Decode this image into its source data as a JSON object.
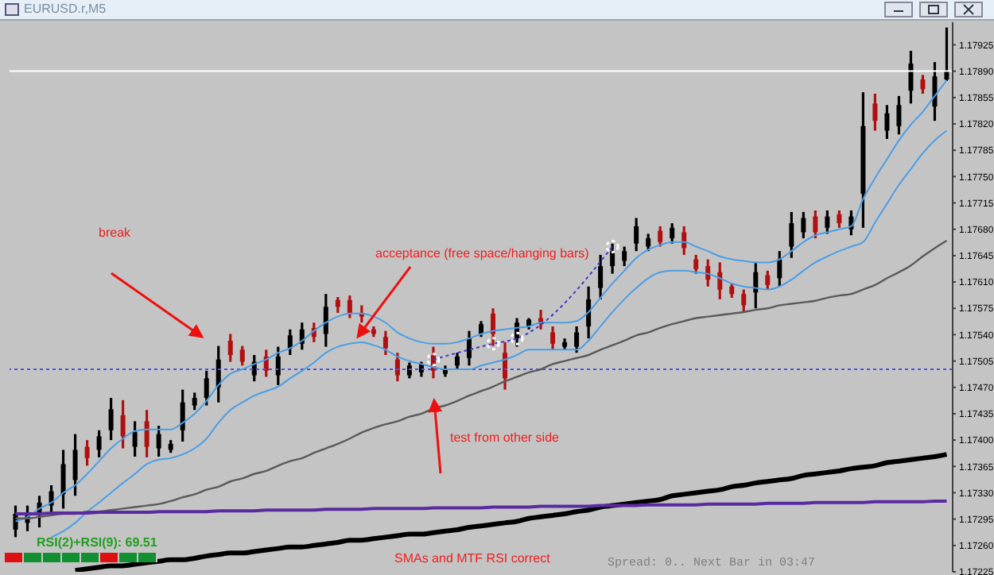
{
  "chart_data": {
    "type": "candlestick",
    "title": "EURUSD.r,M5",
    "categories": [
      null,
      null,
      null,
      null,
      null,
      null,
      null,
      null,
      null,
      null,
      null,
      null,
      null,
      null,
      null,
      null,
      null,
      null,
      null,
      null,
      null,
      null,
      null,
      null,
      null,
      null,
      null,
      null,
      null,
      null,
      null,
      null,
      null,
      null,
      null,
      null,
      null,
      null,
      null,
      null,
      null,
      null,
      null,
      null,
      null,
      null,
      null,
      null,
      null,
      null,
      null,
      null,
      null,
      null,
      null,
      null,
      null,
      null,
      null,
      null,
      null,
      null,
      null,
      null,
      null,
      null,
      null,
      null,
      null,
      null,
      null,
      null,
      null,
      null,
      null,
      null,
      null,
      null,
      null
    ],
    "ohlc": [
      [
        1.17281,
        1.17313,
        1.17271,
        1.17302
      ],
      [
        1.1729,
        1.17313,
        1.17279,
        1.17304
      ],
      [
        1.17302,
        1.17326,
        1.17284,
        1.17317
      ],
      [
        1.17313,
        1.1734,
        1.17304,
        1.17332
      ],
      [
        1.17328,
        1.17387,
        1.17309,
        1.17368
      ],
      [
        1.17347,
        1.17408,
        1.17326,
        1.17387
      ],
      [
        1.17391,
        1.174,
        1.17366,
        1.17376
      ],
      [
        1.17387,
        1.17413,
        1.17377,
        1.17405
      ],
      [
        1.17413,
        1.17456,
        1.174,
        1.17441
      ],
      [
        1.17433,
        1.17453,
        1.17389,
        1.17405
      ],
      [
        1.17391,
        1.17425,
        1.17378,
        1.17411
      ],
      [
        1.17425,
        1.1744,
        1.17377,
        1.17391
      ],
      [
        1.17389,
        1.17419,
        1.17378,
        1.17408
      ],
      [
        1.17387,
        1.174,
        1.17383,
        1.17395
      ],
      [
        1.17413,
        1.17467,
        1.17398,
        1.1745
      ],
      [
        1.17446,
        1.17463,
        1.1744,
        1.17456
      ],
      [
        1.17456,
        1.17492,
        1.17446,
        1.17482
      ],
      [
        1.1747,
        1.17525,
        1.1745,
        1.17507
      ],
      [
        1.17532,
        1.17541,
        1.17504,
        1.17513
      ],
      [
        1.1752,
        1.17525,
        1.17499,
        1.17504
      ],
      [
        1.17486,
        1.17513,
        1.17478,
        1.17504
      ],
      [
        1.17511,
        1.1752,
        1.17484,
        1.17492
      ],
      [
        1.17486,
        1.17524,
        1.17473,
        1.17511
      ],
      [
        1.17522,
        1.17547,
        1.17513,
        1.17539
      ],
      [
        1.17528,
        1.17556,
        1.1752,
        1.17547
      ],
      [
        1.17549,
        1.17556,
        1.1753,
        1.17537
      ],
      [
        1.17541,
        1.17594,
        1.17524,
        1.17577
      ],
      [
        1.17586,
        1.1759,
        1.17569,
        1.17577
      ],
      [
        1.17586,
        1.17592,
        1.17562,
        1.17569
      ],
      [
        1.17569,
        1.17579,
        1.17556,
        1.17564
      ],
      [
        1.17547,
        1.17551,
        1.17537,
        1.17541
      ],
      [
        1.17537,
        1.17545,
        1.17513,
        1.17522
      ],
      [
        1.17507,
        1.17516,
        1.17478,
        1.17486
      ],
      [
        1.17486,
        1.17503,
        1.17482,
        1.17499
      ],
      [
        1.1749,
        1.17504,
        1.17484,
        1.17501
      ],
      [
        1.17513,
        1.17524,
        1.17482,
        1.17492
      ],
      [
        1.17488,
        1.17499,
        1.17484,
        1.17495
      ],
      [
        1.17499,
        1.17516,
        1.17495,
        1.17511
      ],
      [
        1.17509,
        1.17545,
        1.17499,
        1.17535
      ],
      [
        1.17541,
        1.17558,
        1.17537,
        1.17554
      ],
      [
        1.17568,
        1.17575,
        1.17525,
        1.17541
      ],
      [
        1.17516,
        1.1753,
        1.17467,
        1.17482
      ],
      [
        1.17535,
        1.17562,
        1.17524,
        1.17556
      ],
      [
        1.17551,
        1.17562,
        1.17547,
        1.1756
      ],
      [
        1.17562,
        1.17573,
        1.17547,
        1.17554
      ],
      [
        1.17543,
        1.17551,
        1.1752,
        1.17528
      ],
      [
        1.17524,
        1.17535,
        1.1752,
        1.1753
      ],
      [
        1.17524,
        1.17551,
        1.17516,
        1.17543
      ],
      [
        1.17551,
        1.17604,
        1.17535,
        1.17587
      ],
      [
        1.17602,
        1.17646,
        1.17587,
        1.17631
      ],
      [
        1.17631,
        1.17661,
        1.17621,
        1.17651
      ],
      [
        1.17638,
        1.17657,
        1.17631,
        1.17651
      ],
      [
        1.17661,
        1.17695,
        1.17651,
        1.17684
      ],
      [
        1.17657,
        1.17674,
        1.17651,
        1.17668
      ],
      [
        1.17678,
        1.17684,
        1.17657,
        1.17663
      ],
      [
        1.17668,
        1.17688,
        1.17661,
        1.17682
      ],
      [
        1.17676,
        1.17684,
        1.17646,
        1.17655
      ],
      [
        1.1764,
        1.17646,
        1.17621,
        1.17627
      ],
      [
        1.17631,
        1.1764,
        1.17604,
        1.17613
      ],
      [
        1.17623,
        1.17636,
        1.17587,
        1.176
      ],
      [
        1.17604,
        1.17608,
        1.17589,
        1.17594
      ],
      [
        1.17594,
        1.176,
        1.17569,
        1.17579
      ],
      [
        1.17596,
        1.17636,
        1.17575,
        1.17623
      ],
      [
        1.17619,
        1.17625,
        1.176,
        1.17606
      ],
      [
        1.17615,
        1.17651,
        1.17604,
        1.1764
      ],
      [
        1.17657,
        1.17703,
        1.17642,
        1.17688
      ],
      [
        1.17676,
        1.17703,
        1.17668,
        1.17695
      ],
      [
        1.17697,
        1.17705,
        1.17668,
        1.17676
      ],
      [
        1.17682,
        1.17705,
        1.17674,
        1.17697
      ],
      [
        1.177,
        1.17705,
        1.17682,
        1.17688
      ],
      [
        1.1768,
        1.17705,
        1.17672,
        1.17697
      ],
      [
        1.17727,
        1.17862,
        1.17682,
        1.17817
      ],
      [
        1.17847,
        1.1786,
        1.17811,
        1.17824
      ],
      [
        1.17811,
        1.17845,
        1.178,
        1.17834
      ],
      [
        1.17817,
        1.17857,
        1.17806,
        1.17845
      ],
      [
        1.17864,
        1.17917,
        1.17847,
        1.179
      ],
      [
        1.17879,
        1.17885,
        1.1786,
        1.17866
      ],
      [
        1.17843,
        1.17902,
        1.17824,
        1.17883
      ],
      [
        1.17879,
        1.17948,
        1.17877,
        1.1789
      ]
    ],
    "colors": [
      "#000000",
      "#000000",
      "#000000",
      "#000000",
      "#000000",
      "#000000",
      "#b01010",
      "#000000",
      "#000000",
      "#b01010",
      "#000000",
      "#b01010",
      "#000000",
      "#000000",
      "#000000",
      "#000000",
      "#000000",
      "#000000",
      "#b01010",
      "#b01010",
      "#000000",
      "#b01010",
      "#000000",
      "#000000",
      "#000000",
      "#b01010",
      "#000000",
      "#b01010",
      "#b01010",
      "#b01010",
      "#b01010",
      "#b01010",
      "#b01010",
      "#000000",
      "#000000",
      "#b01010",
      "#000000",
      "#000000",
      "#000000",
      "#000000",
      "#b01010",
      "#b01010",
      "#000000",
      "#000000",
      "#b01010",
      "#b01010",
      "#000000",
      "#000000",
      "#000000",
      "#000000",
      "#000000",
      "#000000",
      "#000000",
      "#000000",
      "#b01010",
      "#000000",
      "#b01010",
      "#b01010",
      "#b01010",
      "#b01010",
      "#b01010",
      "#b01010",
      "#000000",
      "#b01010",
      "#000000",
      "#000000",
      "#000000",
      "#b01010",
      "#000000",
      "#b01010",
      "#000000",
      "#000000",
      "#b01010",
      "#000000",
      "#000000",
      "#000000",
      "#b01010",
      "#000000",
      "#000000"
    ],
    "series": [
      {
        "type": "line",
        "color": "#4a9ee6",
        "values": [
          1.17292,
          1.17298,
          1.17309,
          1.17317,
          1.1733,
          1.1734,
          1.17355,
          1.17372,
          1.17389,
          1.17402,
          1.17412,
          1.17414,
          1.17414,
          1.17414,
          1.17423,
          1.17435,
          1.17452,
          1.17473,
          1.17488,
          1.17494,
          1.17501,
          1.17507,
          1.17516,
          1.17522,
          1.17532,
          1.17545,
          1.17556,
          1.17564,
          1.17568,
          1.17568,
          1.17564,
          1.17556,
          1.17543,
          1.17535,
          1.1753,
          1.17528,
          1.17528,
          1.1753,
          1.17535,
          1.17541,
          1.17545,
          1.17547,
          1.17549,
          1.17551,
          1.17556,
          1.17556,
          1.17556,
          1.17558,
          1.1757,
          1.17589,
          1.17608,
          1.17625,
          1.17642,
          1.17653,
          1.17659,
          1.17663,
          1.17663,
          1.17657,
          1.17651,
          1.17644,
          1.1764,
          1.17638,
          1.17636,
          1.17636,
          1.1764,
          1.17651,
          1.17663,
          1.17672,
          1.17676,
          1.1768,
          1.17684,
          1.1772,
          1.17748,
          1.17773,
          1.17798,
          1.17819,
          1.17836,
          1.17857,
          1.17878
        ]
      },
      {
        "type": "line",
        "color": "#4a9ee6",
        "values": [
          null,
          null,
          null,
          1.17271,
          1.17279,
          1.1729,
          1.17305,
          1.17317,
          1.1733,
          1.17343,
          1.17355,
          1.17368,
          1.17374,
          1.17376,
          1.17381,
          1.17389,
          1.17402,
          1.17423,
          1.1744,
          1.1745,
          1.17459,
          1.17465,
          1.17471,
          1.17482,
          1.17492,
          1.17503,
          1.17516,
          1.17524,
          1.17528,
          1.1753,
          1.17526,
          1.1752,
          1.17511,
          1.17505,
          1.17501,
          1.17497,
          1.17494,
          1.17494,
          1.17494,
          1.17499,
          1.17503,
          1.17507,
          1.17513,
          1.1752,
          1.1752,
          1.1752,
          1.1752,
          1.1752,
          1.17532,
          1.17551,
          1.1757,
          1.17587,
          1.17602,
          1.17615,
          1.17623,
          1.17625,
          1.17625,
          1.17623,
          1.17621,
          1.17615,
          1.17608,
          1.17604,
          1.17602,
          1.176,
          1.17604,
          1.17613,
          1.17625,
          1.17636,
          1.17644,
          1.17651,
          1.17657,
          1.17663,
          1.17689,
          1.17714,
          1.17739,
          1.1776,
          1.17781,
          1.17798,
          1.17811
        ]
      },
      {
        "type": "line",
        "color": "#5a5a5a",
        "values": [
          1.17296,
          1.17296,
          1.17298,
          1.173,
          1.17302,
          1.17302,
          1.17305,
          1.17305,
          1.17307,
          1.17309,
          1.17311,
          1.17313,
          1.17315,
          1.17319,
          1.17324,
          1.17328,
          1.17334,
          1.17338,
          1.17345,
          1.17349,
          1.17355,
          1.17359,
          1.17366,
          1.17372,
          1.17376,
          1.17383,
          1.17389,
          1.17395,
          1.17402,
          1.1741,
          1.17416,
          1.17421,
          1.17425,
          1.17431,
          1.17435,
          1.17442,
          1.17446,
          1.17452,
          1.17459,
          1.17465,
          1.17471,
          1.17478,
          1.17484,
          1.1749,
          1.17494,
          1.17501,
          1.17505,
          1.17509,
          1.17513,
          1.1752,
          1.17526,
          1.17532,
          1.17539,
          1.17543,
          1.17549,
          1.17554,
          1.17558,
          1.17562,
          1.17564,
          1.17566,
          1.17568,
          1.1757,
          1.17573,
          1.17575,
          1.17579,
          1.17581,
          1.17583,
          1.17585,
          1.17589,
          1.17592,
          1.17594,
          1.176,
          1.17606,
          1.17615,
          1.17623,
          1.17632,
          1.17644,
          1.17655,
          1.17665
        ]
      },
      {
        "type": "line",
        "color": "#000000",
        "values": [
          null,
          null,
          null,
          null,
          null,
          1.17227,
          1.17229,
          1.17231,
          1.17233,
          1.17233,
          1.17235,
          1.17237,
          1.17239,
          1.17241,
          1.17241,
          1.17243,
          1.17246,
          1.17248,
          1.1725,
          1.1725,
          1.17252,
          1.17254,
          1.17256,
          1.17258,
          1.17258,
          1.1726,
          1.17262,
          1.17264,
          1.17267,
          1.17267,
          1.17269,
          1.17271,
          1.17273,
          1.17275,
          1.17275,
          1.17277,
          1.17279,
          1.17281,
          1.17284,
          1.17286,
          1.17288,
          1.1729,
          1.17292,
          1.17296,
          1.17298,
          1.173,
          1.17302,
          1.17305,
          1.17307,
          1.17311,
          1.17313,
          1.17315,
          1.17317,
          1.17319,
          1.17321,
          1.17326,
          1.17328,
          1.1733,
          1.17332,
          1.17334,
          1.17338,
          1.1734,
          1.17343,
          1.17345,
          1.17347,
          1.17349,
          1.17353,
          1.17355,
          1.17357,
          1.17359,
          1.17362,
          1.17364,
          1.17366,
          1.1737,
          1.17372,
          1.17374,
          1.17376,
          1.17378,
          1.17381
        ]
      },
      {
        "type": "line",
        "color": "#5a2aa0",
        "values": [
          1.17302,
          1.17302,
          1.17302,
          1.17303,
          1.17303,
          1.17303,
          1.17303,
          1.17304,
          1.17304,
          1.17304,
          1.17304,
          1.17304,
          1.17305,
          1.17305,
          1.17305,
          1.17305,
          1.17305,
          1.17306,
          1.17306,
          1.17306,
          1.17306,
          1.17307,
          1.17307,
          1.17307,
          1.17307,
          1.17307,
          1.17308,
          1.17308,
          1.17308,
          1.17308,
          1.17309,
          1.17309,
          1.17309,
          1.17309,
          1.17309,
          1.1731,
          1.1731,
          1.1731,
          1.1731,
          1.1731,
          1.17311,
          1.17311,
          1.17311,
          1.17311,
          1.17312,
          1.17312,
          1.17312,
          1.17312,
          1.17312,
          1.17313,
          1.17313,
          1.17313,
          1.17313,
          1.17314,
          1.17314,
          1.17314,
          1.17314,
          1.17314,
          1.17315,
          1.17315,
          1.17315,
          1.17315,
          1.17315,
          1.17316,
          1.17316,
          1.17316,
          1.17316,
          1.17317,
          1.17317,
          1.17317,
          1.17317,
          1.17317,
          1.17318,
          1.17318,
          1.17318,
          1.17318,
          1.17318,
          1.17319,
          1.17319
        ]
      },
      {
        "type": "line",
        "color": "#3a3ad0",
        "line_style": "dotted",
        "marker": "circle",
        "values": [
          null,
          null,
          null,
          null,
          null,
          null,
          null,
          null,
          null,
          null,
          null,
          null,
          null,
          null,
          null,
          null,
          null,
          null,
          null,
          null,
          null,
          null,
          null,
          null,
          null,
          null,
          null,
          null,
          null,
          null,
          null,
          null,
          null,
          null,
          null,
          1.17507,
          null,
          null,
          null,
          null,
          1.17528,
          null,
          1.17535,
          null,
          null,
          null,
          null,
          null,
          null,
          null,
          1.17657,
          null,
          null,
          null,
          null,
          null,
          null,
          null,
          null,
          null,
          null,
          null,
          null,
          null,
          null,
          null,
          null,
          null,
          null,
          null,
          null,
          null,
          null,
          null,
          null,
          null,
          null,
          null,
          null
        ]
      }
    ],
    "ylim": [
      1.17225,
      1.17955
    ],
    "yticks": [
      1.17225,
      {
        "value": 1.1726,
        "label": "1.17260"
      },
      1.17295,
      {
        "value": 1.1733,
        "label": "1.17330"
      },
      1.17365,
      {
        "value": 1.174,
        "label": "1.17400"
      },
      1.17435,
      {
        "value": 1.1747,
        "label": "1.17470"
      },
      1.17505,
      {
        "value": 1.1754,
        "label": "1.17540"
      },
      1.17575,
      {
        "value": 1.1761,
        "label": "1.17610"
      },
      1.17645,
      {
        "value": 1.1768,
        "label": "1.17680"
      },
      1.17715,
      {
        "value": 1.1775,
        "label": "1.17750"
      },
      1.17785,
      {
        "value": 1.1782,
        "label": "1.17820"
      },
      1.17855,
      {
        "value": 1.1789,
        "label": "1.17890"
      },
      1.17925
    ],
    "tick_labels": "y",
    "ref_lines": [
      {
        "axis": "y",
        "value": 1.17494,
        "color": "#5050e0",
        "line_style": "dotted"
      },
      {
        "axis": "y",
        "value": 1.1789,
        "color": "#ffffff",
        "line_style": "solid"
      }
    ],
    "annotations": [
      "break",
      "acceptance (free space/hanging bars)",
      "test from other side",
      "SMAs and MTF RSI correct",
      "RSI(2)+RSI(9): 69.51",
      "Spread: 0.. Next Bar in 03:47"
    ]
  }
}
